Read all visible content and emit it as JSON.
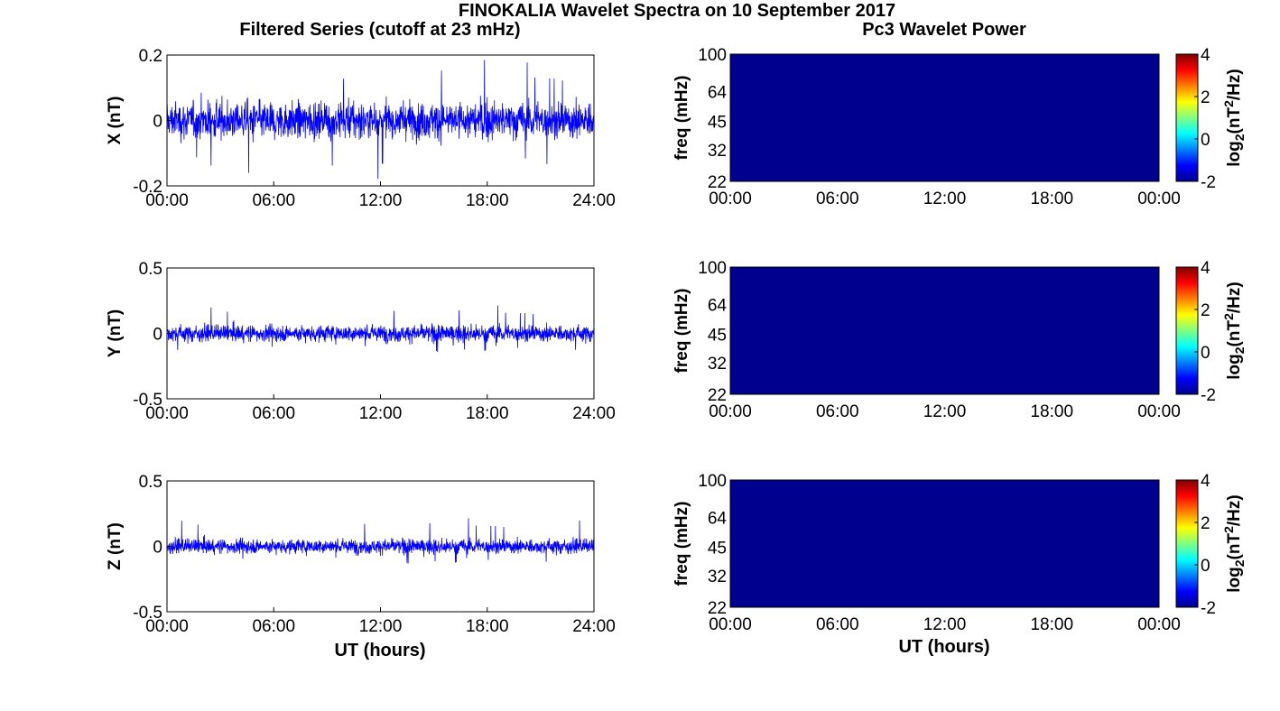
{
  "figure": {
    "title": "FINOKALIA Wavelet Spectra on 10 September 2017",
    "left_title": "Filtered Series (cutoff at 23 mHz)",
    "right_title": "Pc3 Wavelet Power",
    "xlabel": "UT (hours)"
  },
  "colors": {
    "series_line": "#0000ff",
    "wavelet_fill": "#00008f",
    "axes": "#000000",
    "colormap": [
      "#00008f",
      "#0000ff",
      "#00ffff",
      "#ffff00",
      "#ff0000",
      "#800000"
    ]
  },
  "chart_data": [
    {
      "type": "line",
      "name": "X",
      "ylabel": "X (nT)",
      "ylim": [
        -0.2,
        0.2
      ],
      "yticks": [
        "0.2",
        "0",
        "-0.2"
      ],
      "ytick_values": [
        0.2,
        0,
        -0.2
      ],
      "xticks": [
        "00:00",
        "06:00",
        "12:00",
        "18:00",
        "24:00"
      ],
      "xlim_hours": [
        0,
        24
      ],
      "series": [
        {
          "x_hours_range": [
            0,
            24
          ],
          "envelope_typical": [
            -0.07,
            0.07
          ],
          "extremes": [
            -0.18,
            0.19
          ]
        }
      ]
    },
    {
      "type": "heatmap",
      "name": "X",
      "ylabel": "freq (mHz)",
      "yticks": [
        "100",
        "64",
        "45",
        "32",
        "22"
      ],
      "ytick_values": [
        100,
        64,
        45,
        32,
        22
      ],
      "ylim": [
        22,
        100
      ],
      "yscale": "log",
      "xticks": [
        "00:00",
        "06:00",
        "12:00",
        "18:00",
        "00:00"
      ],
      "colorbar": {
        "label": "log2(nT2/Hz)",
        "ticks": [
          "4",
          "2",
          "0",
          "-2"
        ],
        "range": [
          -2,
          4
        ]
      },
      "values": "uniform minimum (-2)"
    },
    {
      "type": "line",
      "name": "Y",
      "ylabel": "Y (nT)",
      "ylim": [
        -0.5,
        0.5
      ],
      "yticks": [
        "0.5",
        "0",
        "-0.5"
      ],
      "ytick_values": [
        0.5,
        0,
        -0.5
      ],
      "xticks": [
        "00:00",
        "06:00",
        "12:00",
        "18:00",
        "24:00"
      ],
      "xlim_hours": [
        0,
        24
      ],
      "series": [
        {
          "x_hours_range": [
            0,
            24
          ],
          "envelope_typical": [
            -0.08,
            0.08
          ],
          "extremes": [
            -0.15,
            0.23
          ]
        }
      ]
    },
    {
      "type": "heatmap",
      "name": "Y",
      "ylabel": "freq (mHz)",
      "yticks": [
        "100",
        "64",
        "45",
        "32",
        "22"
      ],
      "ytick_values": [
        100,
        64,
        45,
        32,
        22
      ],
      "ylim": [
        22,
        100
      ],
      "yscale": "log",
      "xticks": [
        "00:00",
        "06:00",
        "12:00",
        "18:00",
        "00:00"
      ],
      "colorbar": {
        "label": "log2(nT2/Hz)",
        "ticks": [
          "4",
          "2",
          "0",
          "-2"
        ],
        "range": [
          -2,
          4
        ]
      },
      "values": "uniform minimum (-2)"
    },
    {
      "type": "line",
      "name": "Z",
      "ylabel": "Z (nT)",
      "ylim": [
        -0.5,
        0.5
      ],
      "yticks": [
        "0.5",
        "0",
        "-0.5"
      ],
      "ytick_values": [
        0.5,
        0,
        -0.5
      ],
      "xticks": [
        "00:00",
        "06:00",
        "12:00",
        "18:00",
        "24:00"
      ],
      "xlim_hours": [
        0,
        24
      ],
      "series": [
        {
          "x_hours_range": [
            0,
            24
          ],
          "envelope_typical": [
            -0.07,
            0.07
          ],
          "extremes": [
            -0.14,
            0.23
          ]
        }
      ]
    },
    {
      "type": "heatmap",
      "name": "Z",
      "ylabel": "freq (mHz)",
      "yticks": [
        "100",
        "64",
        "45",
        "32",
        "22"
      ],
      "ytick_values": [
        100,
        64,
        45,
        32,
        22
      ],
      "ylim": [
        22,
        100
      ],
      "yscale": "log",
      "xticks": [
        "00:00",
        "06:00",
        "12:00",
        "18:00",
        "00:00"
      ],
      "colorbar": {
        "label": "log2(nT2/Hz)",
        "ticks": [
          "4",
          "2",
          "0",
          "-2"
        ],
        "range": [
          -2,
          4
        ]
      },
      "values": "uniform minimum (-2)"
    }
  ]
}
